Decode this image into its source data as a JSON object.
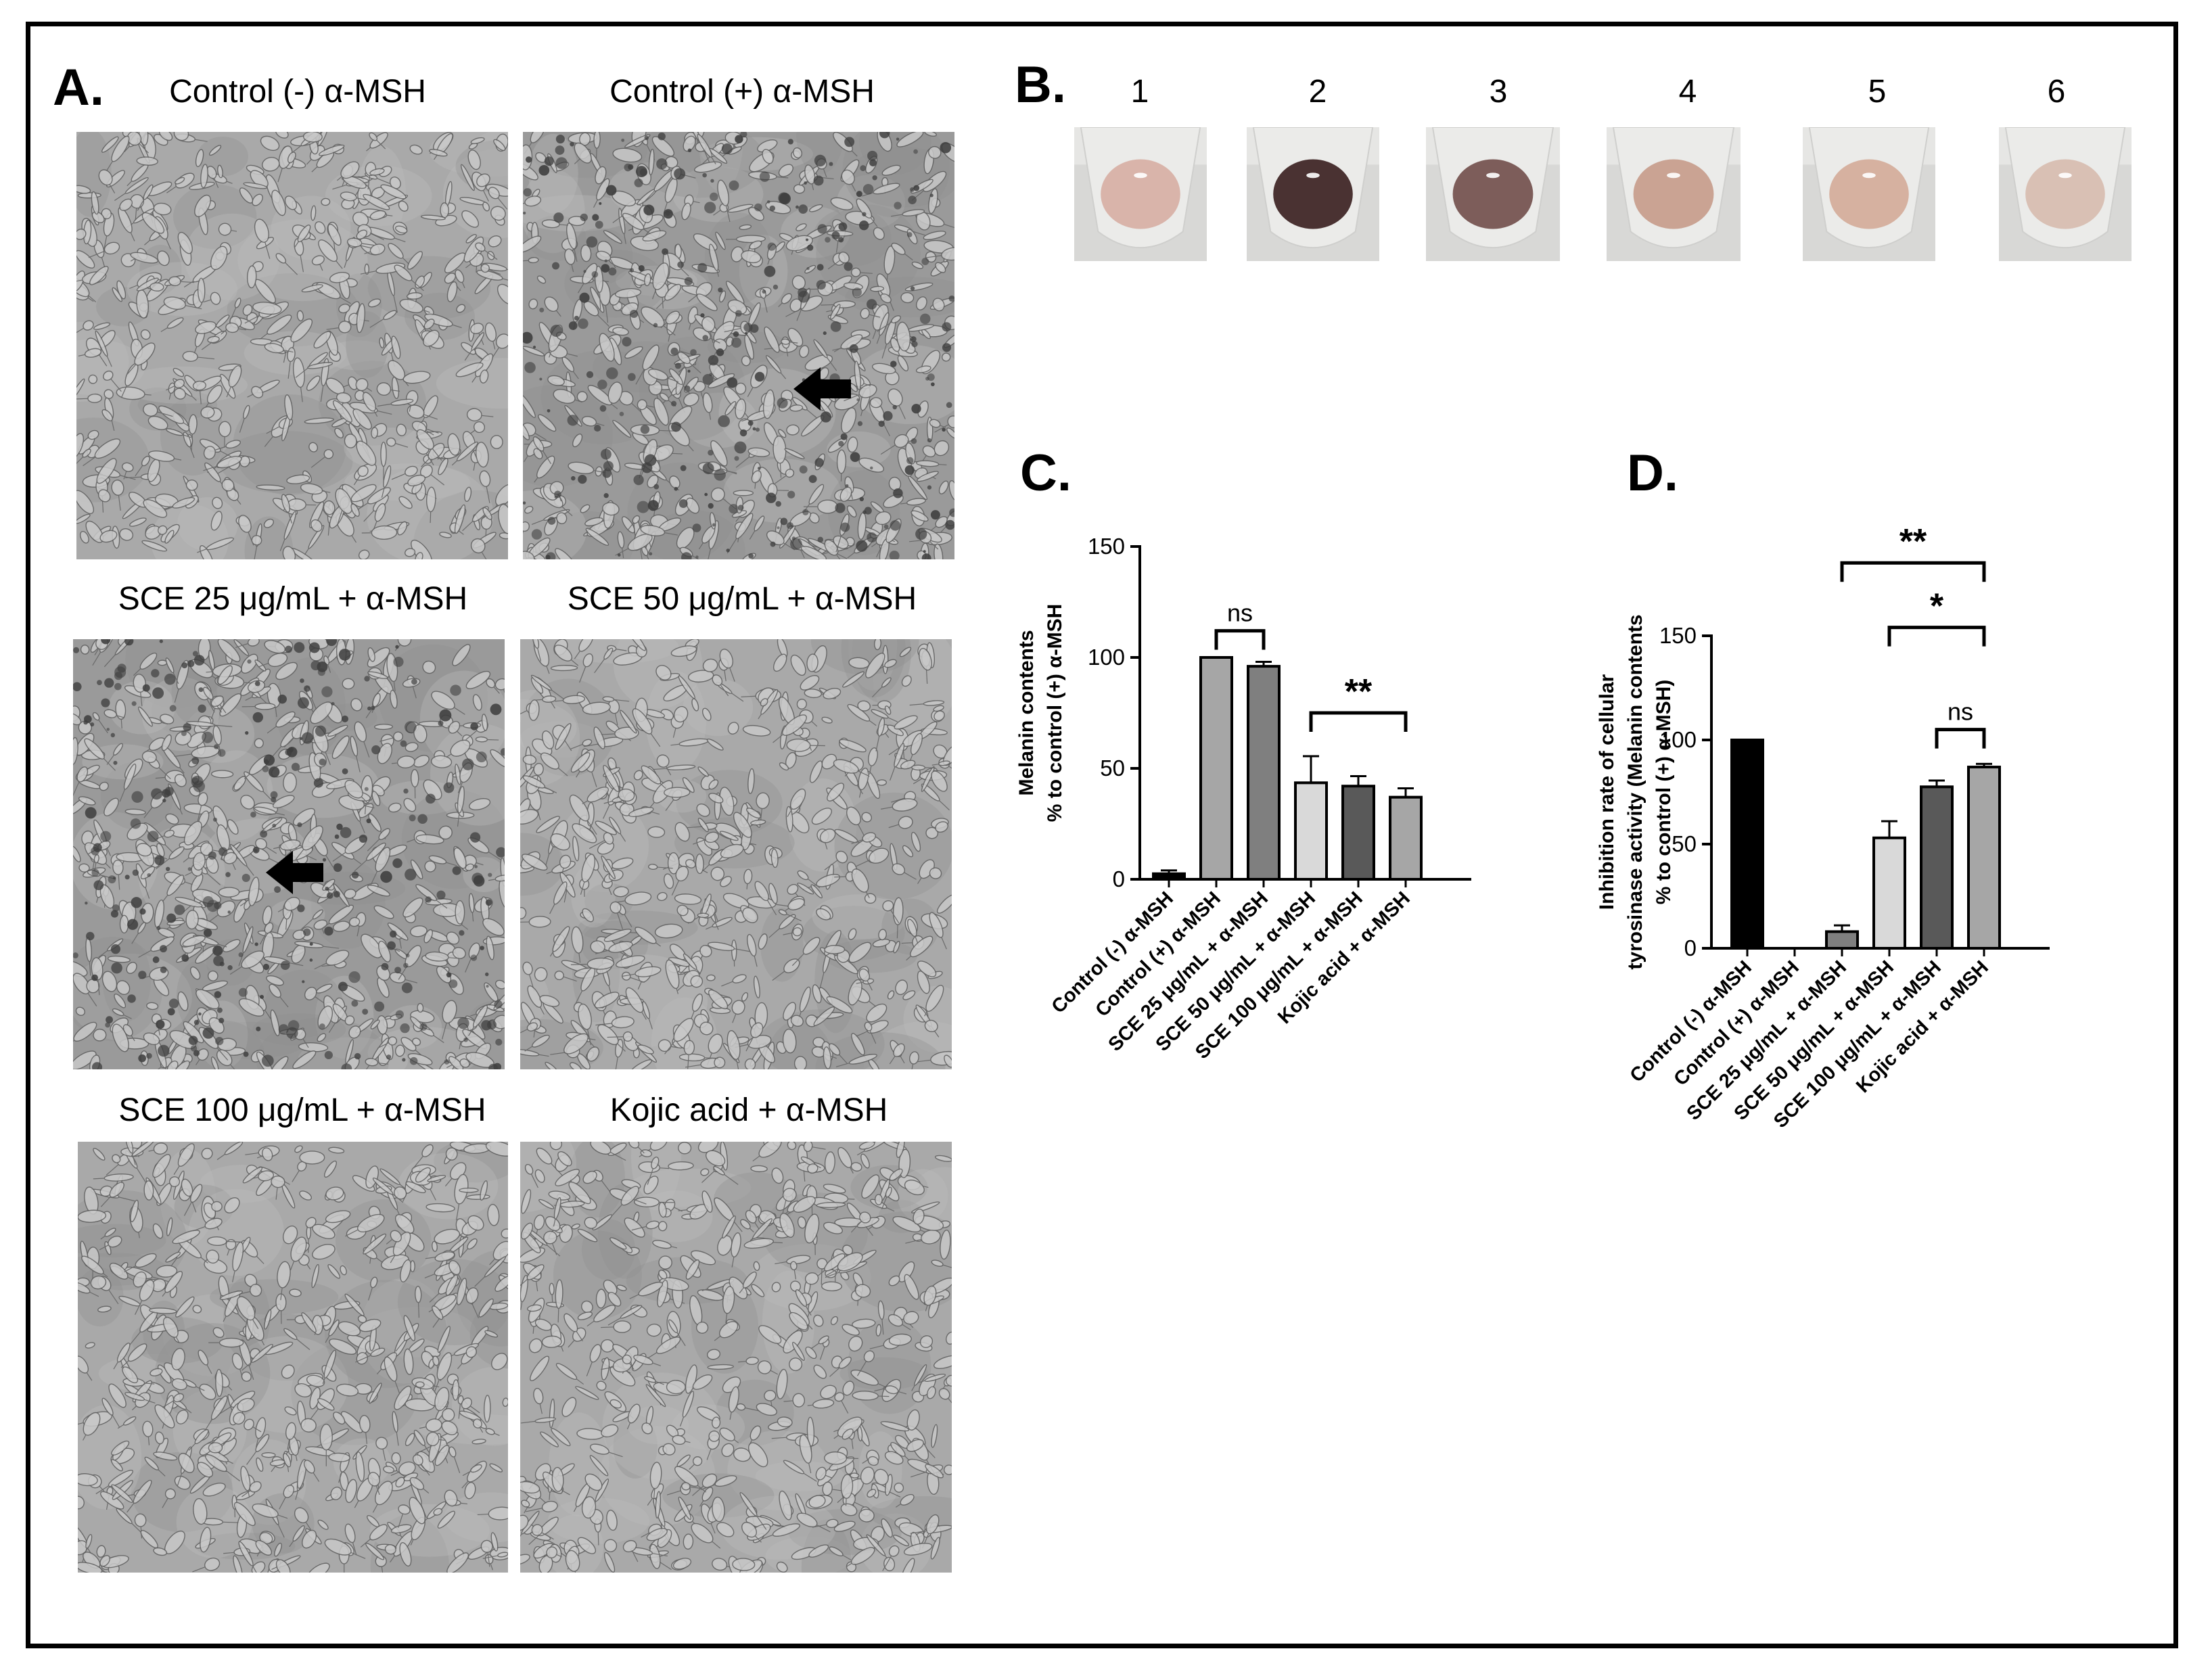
{
  "panels": {
    "A": "A.",
    "B": "B.",
    "C": "C.",
    "D": "D."
  },
  "panel_a": {
    "images": [
      {
        "caption": "Control (-) α-MSH",
        "tone": "light",
        "arrow": false
      },
      {
        "caption": "Control (+) α-MSH",
        "tone": "dark",
        "arrow": true
      },
      {
        "caption": "SCE 25 μg/mL + α-MSH",
        "tone": "dark",
        "arrow": true
      },
      {
        "caption": "SCE 50 μg/mL + α-MSH",
        "tone": "light",
        "arrow": false
      },
      {
        "caption": "SCE 100 μg/mL + α-MSH",
        "tone": "light",
        "arrow": false
      },
      {
        "caption": "Kojic acid + α-MSH",
        "tone": "light",
        "arrow": false
      }
    ]
  },
  "panel_b": {
    "lanes": [
      {
        "label": "1",
        "pellet_color": "#d9b4aa"
      },
      {
        "label": "2",
        "pellet_color": "#4a3232"
      },
      {
        "label": "3",
        "pellet_color": "#7d5d5a"
      },
      {
        "label": "4",
        "pellet_color": "#caa393"
      },
      {
        "label": "5",
        "pellet_color": "#d6b1a0"
      },
      {
        "label": "6",
        "pellet_color": "#d9c0b4"
      }
    ]
  },
  "chart_data": [
    {
      "type": "bar",
      "panel": "C",
      "ylabel": [
        "Melanin contents",
        "% to control (+) α-MSH"
      ],
      "ylim": [
        0,
        150
      ],
      "yticks": [
        0,
        50,
        100,
        150
      ],
      "categories": [
        "Control (-) α-MSH",
        "Control (+) α-MSH",
        "SCE 25 μg/mL + α-MSH",
        "SCE 50 μg/mL + α-MSH",
        "SCE 100 μg/mL + α-MSH",
        "Kojic acid + α-MSH"
      ],
      "values": [
        2.5,
        100,
        96,
        43.5,
        42,
        37
      ],
      "errors": [
        1.5,
        0,
        2,
        12,
        4.5,
        4
      ],
      "colors": [
        "#000000",
        "#a6a6a6",
        "#7f7f7f",
        "#d9d9d9",
        "#595959",
        "#a6a6a6"
      ],
      "annotations": [
        {
          "from": 1,
          "to": 2,
          "label": "ns",
          "y": 112
        },
        {
          "from": 3,
          "to": 5,
          "label": "**",
          "y": 75
        }
      ]
    },
    {
      "type": "bar",
      "panel": "D",
      "ylabel": [
        "Inhibition rate of cellular",
        "tyrosinase activity (Melanin contents",
        "% to control (+) α-MSH)"
      ],
      "ylim": [
        0,
        150
      ],
      "yticks": [
        0,
        50,
        100,
        150
      ],
      "categories": [
        "Control (-) α-MSH",
        "Control (+) α-MSH",
        "SCE 25 μg/mL + α-MSH",
        "SCE 50 μg/mL + α-MSH",
        "SCE 100 μg/mL + α-MSH",
        "Kojic acid + α-MSH"
      ],
      "values": [
        100,
        0,
        8,
        53,
        77.5,
        87
      ],
      "errors": [
        0,
        0,
        3,
        8,
        3,
        1.5
      ],
      "colors": [
        "#000000",
        "#a6a6a6",
        "#7f7f7f",
        "#d9d9d9",
        "#595959",
        "#a6a6a6"
      ],
      "annotations": [
        {
          "from": 4,
          "to": 5,
          "label": "ns",
          "y": 105
        },
        {
          "from": 3,
          "to": 5,
          "label": "*",
          "y": 154
        },
        {
          "from": 2,
          "to": 5,
          "label": "**",
          "y": 185
        }
      ]
    }
  ]
}
